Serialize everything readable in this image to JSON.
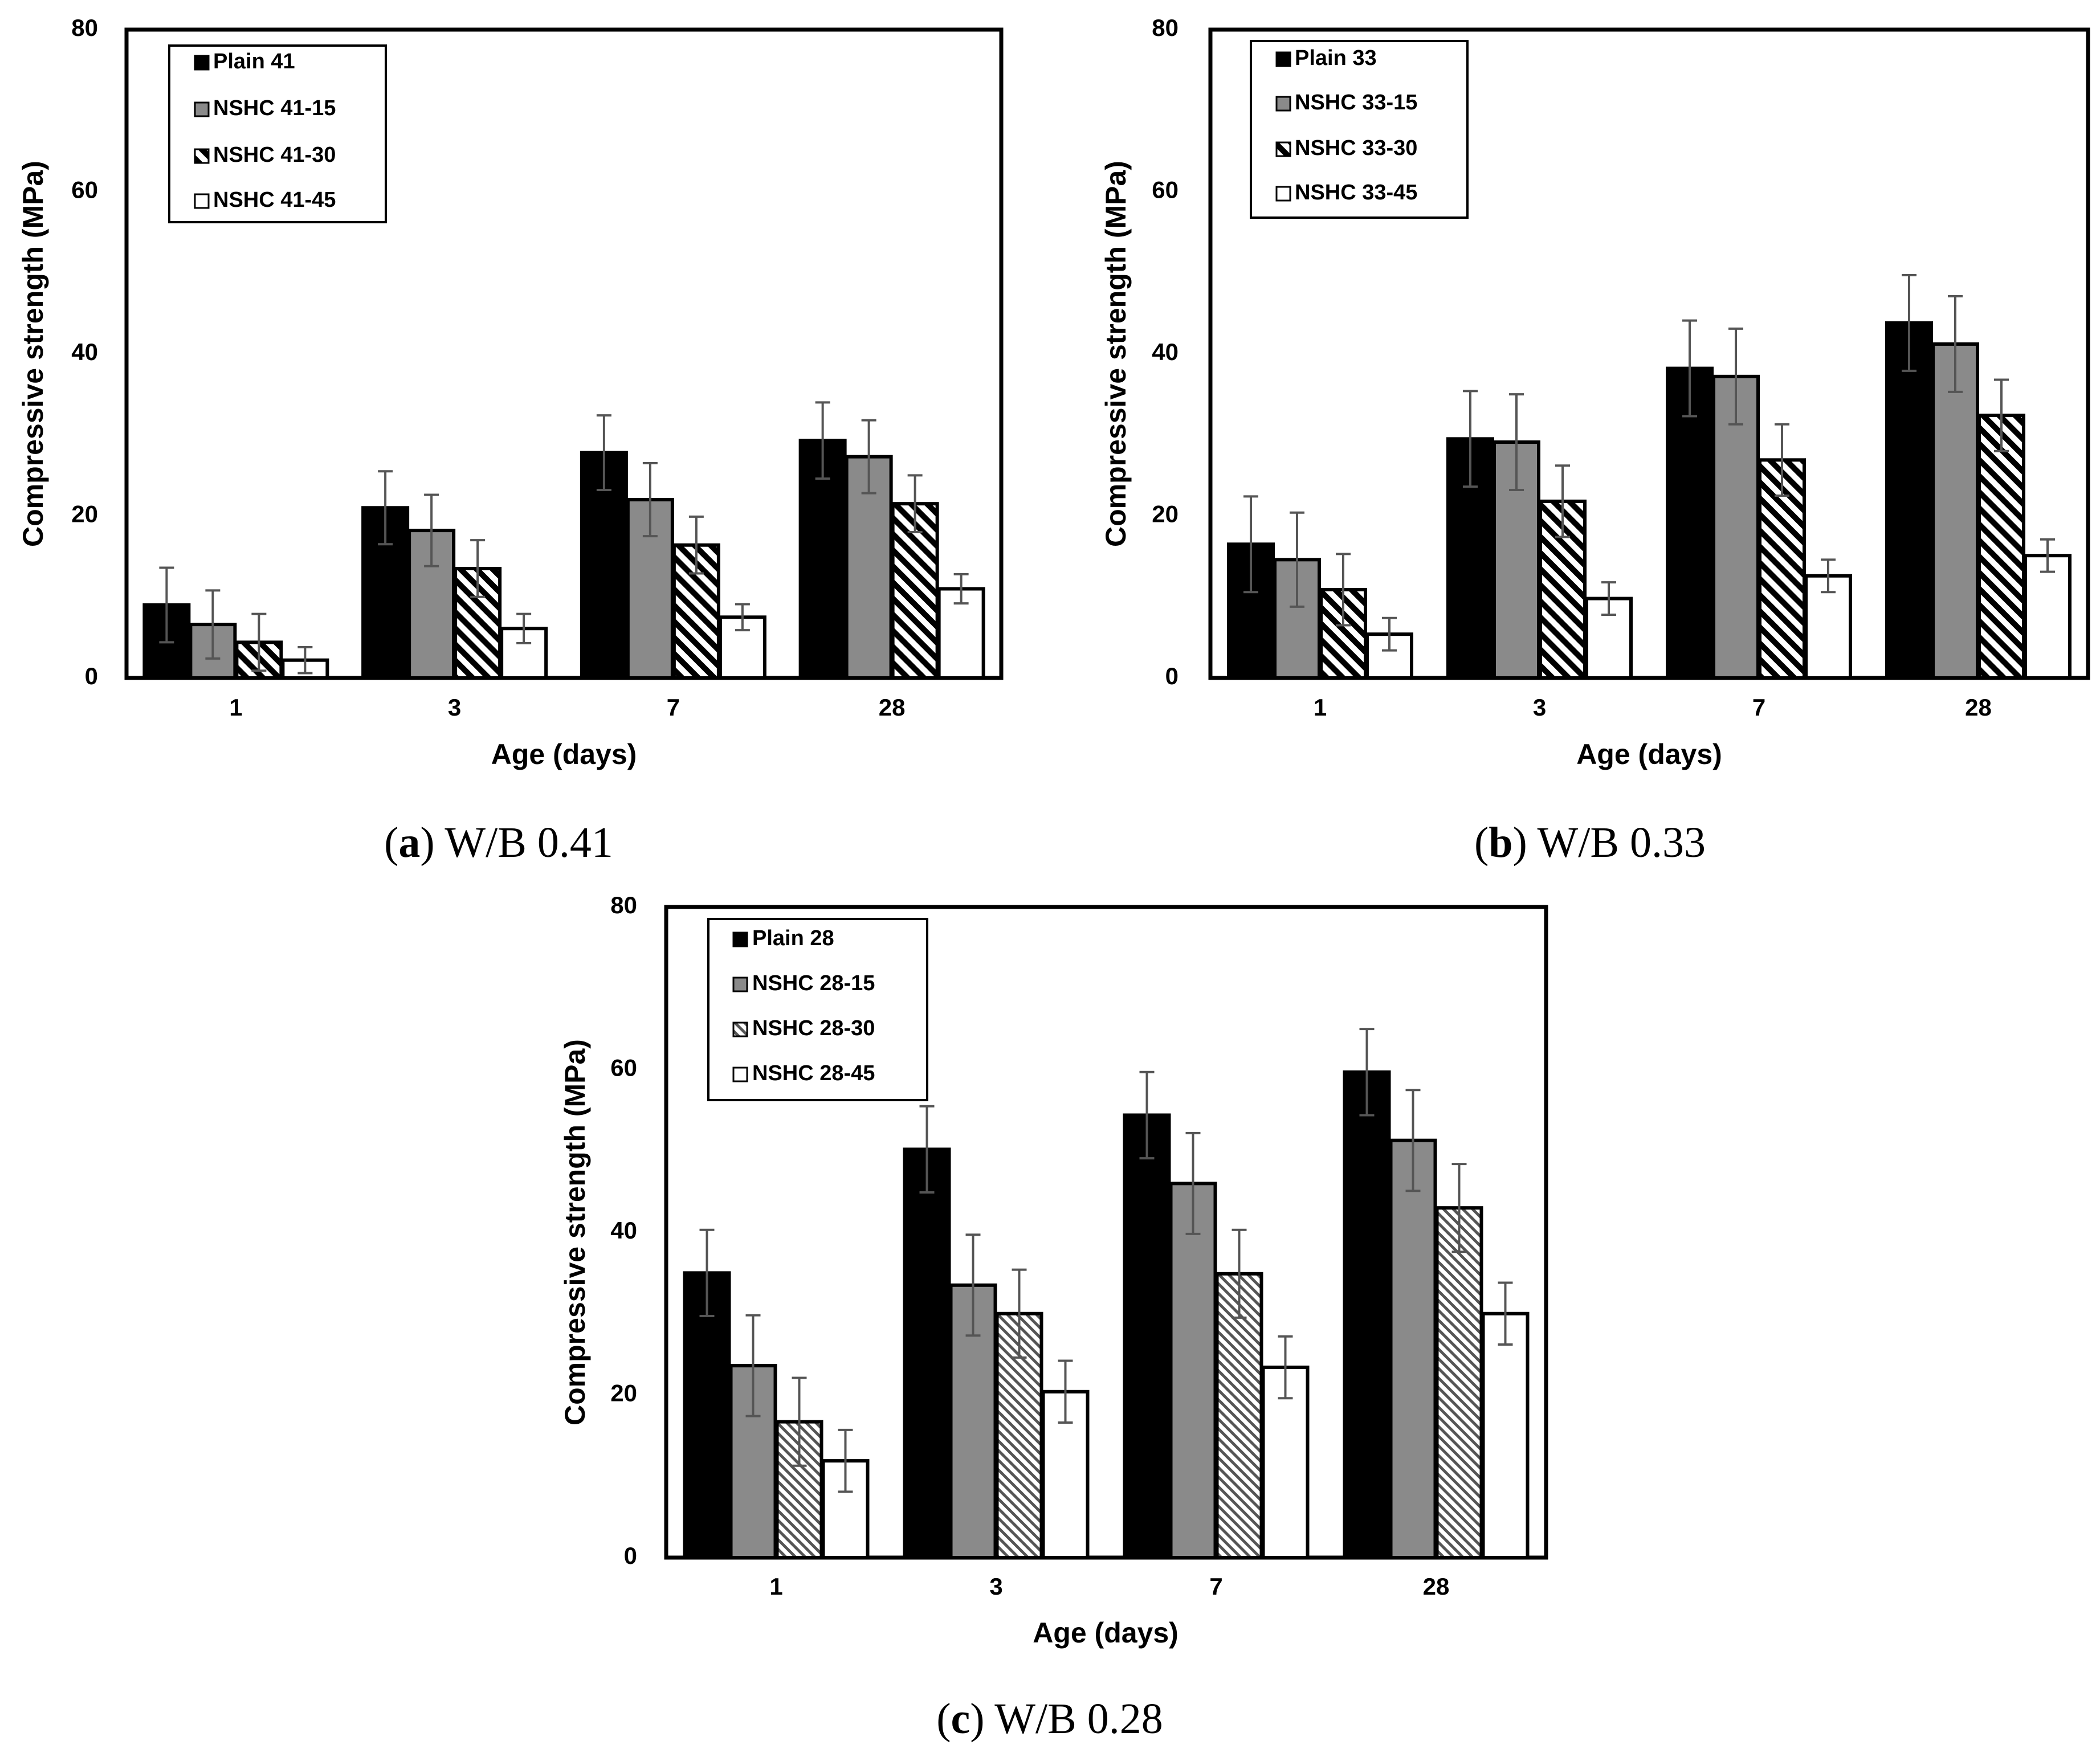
{
  "chart_data": [
    {
      "type": "bar",
      "panel_label": "a",
      "caption": "W/B 0.41",
      "categories": [
        "1",
        "3",
        "7",
        "28"
      ],
      "xlabel": "Age (days)",
      "ylabel": "Compressive strength (MPa)",
      "ylim": [
        0,
        80
      ],
      "yticks": [
        "0",
        "20",
        "40",
        "60",
        "80"
      ],
      "legend_position": "top-left",
      "series": [
        {
          "name": "Plain 41",
          "pattern": "solid-black",
          "values": [
            9.0,
            21.0,
            27.8,
            29.3
          ],
          "errors": [
            4.6,
            4.5,
            4.6,
            4.7
          ]
        },
        {
          "name": "NSHC 41-15",
          "pattern": "solid-gray",
          "values": [
            6.6,
            18.2,
            22.0,
            27.3
          ],
          "errors": [
            4.2,
            4.4,
            4.5,
            4.5
          ]
        },
        {
          "name": "NSHC 41-30",
          "pattern": "diagonal",
          "values": [
            4.4,
            13.5,
            16.4,
            21.5
          ],
          "errors": [
            3.5,
            3.5,
            3.5,
            3.5
          ]
        },
        {
          "name": "NSHC 41-45",
          "pattern": "white",
          "values": [
            2.2,
            6.1,
            7.5,
            11.0
          ],
          "errors": [
            1.6,
            1.8,
            1.6,
            1.8
          ]
        }
      ]
    },
    {
      "type": "bar",
      "panel_label": "b",
      "caption": "W/B 0.33",
      "categories": [
        "1",
        "3",
        "7",
        "28"
      ],
      "xlabel": "Age (days)",
      "ylabel": "Compressive strength (MPa)",
      "ylim": [
        0,
        80
      ],
      "yticks": [
        "0",
        "20",
        "40",
        "60",
        "80"
      ],
      "legend_position": "top-left",
      "series": [
        {
          "name": "Plain 33",
          "pattern": "solid-black",
          "values": [
            16.5,
            29.5,
            38.2,
            43.8
          ],
          "errors": [
            5.9,
            5.9,
            5.9,
            5.9
          ]
        },
        {
          "name": "NSHC 33-15",
          "pattern": "solid-gray",
          "values": [
            14.6,
            29.1,
            37.2,
            41.2
          ],
          "errors": [
            5.8,
            5.9,
            5.9,
            5.9
          ]
        },
        {
          "name": "NSHC 33-30",
          "pattern": "diagonal",
          "values": [
            10.9,
            21.8,
            26.9,
            32.4
          ],
          "errors": [
            4.4,
            4.4,
            4.4,
            4.4
          ]
        },
        {
          "name": "NSHC 33-45",
          "pattern": "white",
          "values": [
            5.4,
            9.8,
            12.6,
            15.1
          ],
          "errors": [
            2.0,
            2.0,
            2.0,
            2.0
          ]
        }
      ]
    },
    {
      "type": "bar",
      "panel_label": "c",
      "caption": "W/B 0.28",
      "categories": [
        "1",
        "3",
        "7",
        "28"
      ],
      "xlabel": "Age (days)",
      "ylabel": "Compressive strength (MPa)",
      "ylim": [
        0,
        80
      ],
      "yticks": [
        "0",
        "20",
        "40",
        "60",
        "80"
      ],
      "legend_position": "top-left",
      "series": [
        {
          "name": "Plain 28",
          "pattern": "solid-black",
          "values": [
            35.0,
            50.2,
            54.4,
            59.7
          ],
          "errors": [
            5.3,
            5.3,
            5.3,
            5.3
          ]
        },
        {
          "name": "NSHC 28-15",
          "pattern": "solid-gray",
          "values": [
            23.6,
            33.5,
            46.0,
            51.3
          ],
          "errors": [
            6.2,
            6.2,
            6.2,
            6.2
          ]
        },
        {
          "name": "NSHC 28-30",
          "pattern": "diagonal-fine",
          "values": [
            16.7,
            30.0,
            34.9,
            43.0
          ],
          "errors": [
            5.4,
            5.4,
            5.4,
            5.4
          ]
        },
        {
          "name": "NSHC 28-45",
          "pattern": "white",
          "values": [
            11.9,
            20.4,
            23.4,
            30.0
          ],
          "errors": [
            3.8,
            3.8,
            3.8,
            3.8
          ]
        }
      ]
    }
  ]
}
